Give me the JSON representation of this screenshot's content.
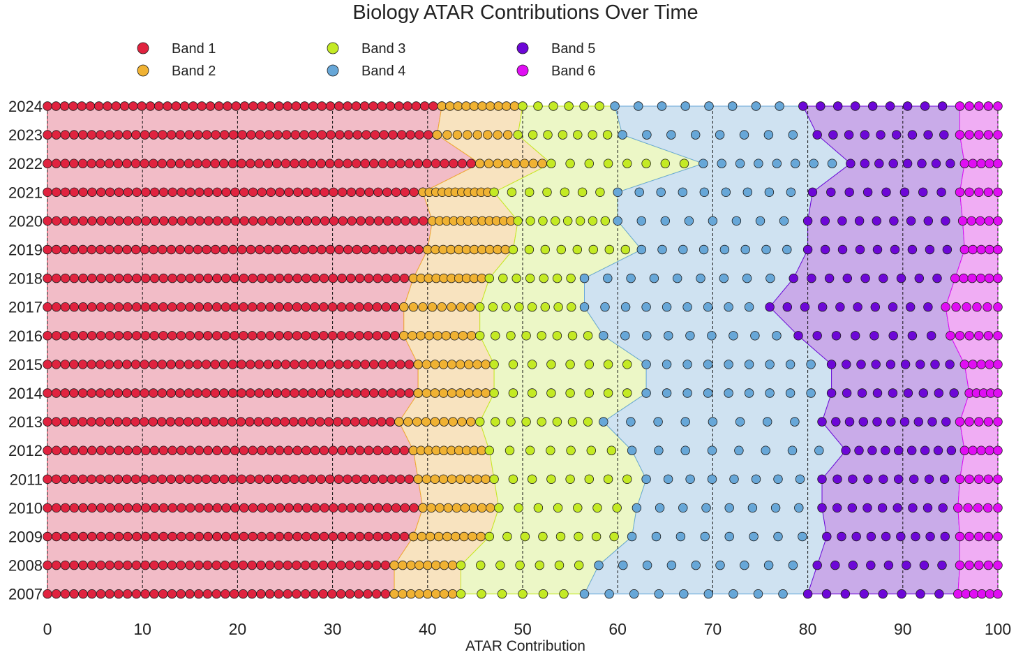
{
  "chart_data": {
    "type": "scatter",
    "title": "Biology ATAR Contributions Over Time",
    "xlabel": "ATAR Contribution",
    "ylabel": "",
    "xlim": [
      0,
      100
    ],
    "x_ticks": [
      "0",
      "10",
      "20",
      "30",
      "40",
      "50",
      "60",
      "70",
      "80",
      "90",
      "100"
    ],
    "grid": "vertical dashed at major ticks",
    "legend_position": "top-left",
    "years": [
      "2024",
      "2023",
      "2022",
      "2021",
      "2020",
      "2019",
      "2018",
      "2017",
      "2016",
      "2015",
      "2014",
      "2013",
      "2012",
      "2011",
      "2010",
      "2009",
      "2008",
      "2007"
    ],
    "bands": [
      {
        "name": "Band 1",
        "color": "#e0233f",
        "fill": "#f2bcc7"
      },
      {
        "name": "Band 2",
        "color": "#f0b233",
        "fill": "#f8e3bf"
      },
      {
        "name": "Band 3",
        "color": "#c4ea24",
        "fill": "#ecf7c6"
      },
      {
        "name": "Band 4",
        "color": "#67a7d8",
        "fill": "#cfe2f1"
      },
      {
        "name": "Band 5",
        "color": "#6d07d7",
        "fill": "#c9abe9"
      },
      {
        "name": "Band 6",
        "color": "#e00ef3",
        "fill": "#f0adf4"
      }
    ],
    "band_boundaries": [
      [
        41.5,
        50,
        59.7,
        79.5,
        96.0
      ],
      [
        41.0,
        49.5,
        60.5,
        81.0,
        96.0
      ],
      [
        45.5,
        53.0,
        69.0,
        84.5,
        96.5
      ],
      [
        39.5,
        47.0,
        60.0,
        80.5,
        96.0
      ],
      [
        40.5,
        49.5,
        60.0,
        80.0,
        96.3
      ],
      [
        40.0,
        49.0,
        62.5,
        80.0,
        96.5
      ],
      [
        38.5,
        46.5,
        56.5,
        78.5,
        95.5
      ],
      [
        37.5,
        45.5,
        56.5,
        76.0,
        94.5
      ],
      [
        37.5,
        45.5,
        58.5,
        79.0,
        95.0
      ],
      [
        39.0,
        47.0,
        63.0,
        82.5,
        96.5
      ],
      [
        39.0,
        47.0,
        63.0,
        82.5,
        97.0
      ],
      [
        37.0,
        45.5,
        58.5,
        81.5,
        96.0
      ],
      [
        38.5,
        46.5,
        61.5,
        84.0,
        96.5
      ],
      [
        39.0,
        47.0,
        63.0,
        81.5,
        96.0
      ],
      [
        39.5,
        47.5,
        62.0,
        81.5,
        95.8
      ],
      [
        38.5,
        46.5,
        61.5,
        82.0,
        96.0
      ],
      [
        36.5,
        43.5,
        58.0,
        81.0,
        96.0
      ],
      [
        36.5,
        43.5,
        56.5,
        80.0,
        95.8
      ]
    ],
    "band_dot_counts": [
      [
        47,
        10,
        6,
        8,
        9,
        5
      ],
      [
        45,
        8,
        7,
        8,
        9,
        5
      ],
      [
        50,
        8,
        8,
        8,
        8,
        5
      ],
      [
        43,
        11,
        7,
        9,
        8,
        5
      ],
      [
        44,
        12,
        8,
        8,
        9,
        5
      ],
      [
        44,
        11,
        8,
        8,
        9,
        5
      ],
      [
        42,
        10,
        7,
        9,
        9,
        6
      ],
      [
        41,
        8,
        8,
        9,
        10,
        6
      ],
      [
        41,
        9,
        8,
        9,
        8,
        6
      ],
      [
        43,
        9,
        8,
        9,
        9,
        5
      ],
      [
        43,
        9,
        8,
        9,
        9,
        5
      ],
      [
        41,
        9,
        8,
        8,
        10,
        5
      ],
      [
        42,
        10,
        7,
        8,
        9,
        5
      ],
      [
        43,
        9,
        8,
        8,
        9,
        5
      ],
      [
        43,
        9,
        7,
        8,
        9,
        5
      ],
      [
        42,
        9,
        8,
        8,
        9,
        5
      ],
      [
        40,
        8,
        7,
        9,
        8,
        5
      ],
      [
        40,
        8,
        6,
        9,
        8,
        6
      ]
    ]
  }
}
